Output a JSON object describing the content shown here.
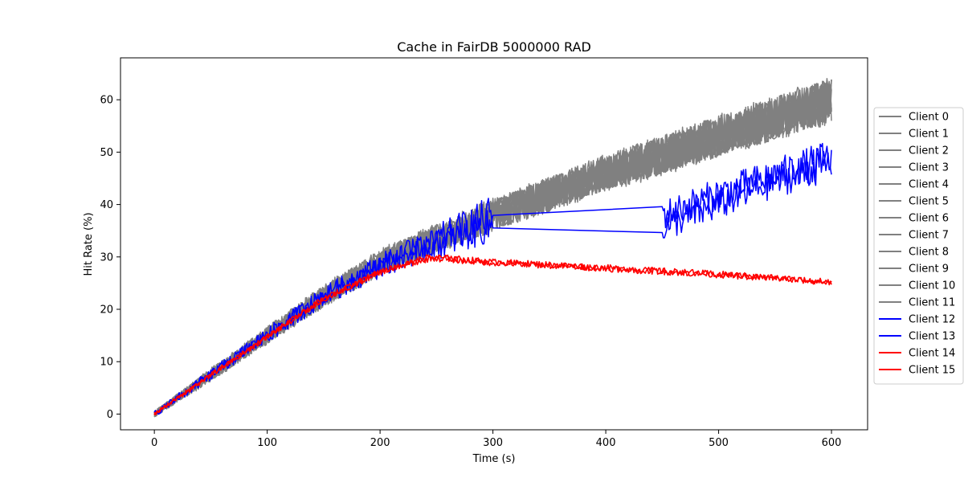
{
  "chart_data": {
    "type": "line",
    "title": "Cache in  FairDB 5000000 RAD",
    "xlabel": "Time (s)",
    "ylabel": "Hit Rate (%)",
    "xlim": [
      -30,
      632
    ],
    "ylim": [
      -3.0,
      68.0
    ],
    "xticks": [
      0,
      100,
      200,
      300,
      400,
      500,
      600
    ],
    "yticks": [
      0,
      10,
      20,
      30,
      40,
      50,
      60
    ],
    "grid": false,
    "legend_position": "outside-right",
    "colors": {
      "gray": "#808080",
      "blue": "#0000ff",
      "red": "#ff0000"
    },
    "series": [
      {
        "name": "Client 0",
        "color": "#808080",
        "x": [
          0,
          50,
          100,
          150,
          200,
          250,
          300,
          350,
          400,
          450,
          500,
          550,
          600
        ],
        "y": [
          0,
          7.5,
          15,
          22.5,
          29,
          33.5,
          38,
          42,
          46,
          49.5,
          53,
          56.5,
          60
        ]
      },
      {
        "name": "Client 1",
        "color": "#808080",
        "x": [
          0,
          50,
          100,
          150,
          200,
          250,
          300,
          350,
          400,
          450,
          500,
          550,
          600
        ],
        "y": [
          0,
          7.3,
          14.8,
          22.2,
          28.7,
          33.2,
          37.6,
          41.6,
          45.6,
          49.1,
          52.6,
          56.1,
          59.6
        ]
      },
      {
        "name": "Client 2",
        "color": "#808080",
        "x": [
          0,
          50,
          100,
          150,
          200,
          250,
          300,
          350,
          400,
          450,
          500,
          550,
          600
        ],
        "y": [
          0,
          7.7,
          15.2,
          22.8,
          29.3,
          33.8,
          38.3,
          42.3,
          46.3,
          49.8,
          53.3,
          56.8,
          60.3
        ]
      },
      {
        "name": "Client 3",
        "color": "#808080",
        "x": [
          0,
          50,
          100,
          150,
          200,
          250,
          300,
          350,
          400,
          450,
          500,
          550,
          600
        ],
        "y": [
          0,
          7.4,
          14.9,
          22.4,
          28.9,
          33.4,
          37.8,
          41.8,
          45.8,
          49.3,
          52.8,
          56.3,
          59.8
        ]
      },
      {
        "name": "Client 4",
        "color": "#808080",
        "x": [
          0,
          50,
          100,
          150,
          200,
          250,
          300,
          350,
          400,
          450,
          500,
          550,
          600
        ],
        "y": [
          0,
          7.6,
          15.1,
          22.6,
          29.1,
          33.6,
          38.1,
          42.1,
          46.1,
          49.6,
          53.1,
          56.6,
          60.1
        ]
      },
      {
        "name": "Client 5",
        "color": "#808080",
        "x": [
          0,
          50,
          100,
          150,
          200,
          250,
          300,
          350,
          400,
          450,
          500,
          550,
          600
        ],
        "y": [
          0,
          7.2,
          14.7,
          22.1,
          28.6,
          33.1,
          37.5,
          41.5,
          45.5,
          49,
          52.5,
          56,
          59.5
        ]
      },
      {
        "name": "Client 6",
        "color": "#808080",
        "x": [
          0,
          50,
          100,
          150,
          200,
          250,
          300,
          350,
          400,
          450,
          500,
          550,
          600
        ],
        "y": [
          0,
          7.8,
          15.3,
          22.9,
          29.4,
          33.9,
          38.4,
          42.4,
          46.4,
          49.9,
          53.4,
          56.9,
          60.4
        ]
      },
      {
        "name": "Client 7",
        "color": "#808080",
        "x": [
          0,
          50,
          100,
          150,
          200,
          250,
          300,
          350,
          400,
          450,
          500,
          550,
          600
        ],
        "y": [
          0,
          7.5,
          15,
          22.5,
          29,
          33.5,
          38,
          42,
          46,
          49.5,
          53,
          56.5,
          60
        ]
      },
      {
        "name": "Client 8",
        "color": "#808080",
        "x": [
          0,
          50,
          100,
          150,
          200,
          250,
          300,
          350,
          400,
          450,
          500,
          550,
          600
        ],
        "y": [
          0,
          7.3,
          14.9,
          22.3,
          28.8,
          33.3,
          37.7,
          41.7,
          45.7,
          49.2,
          52.7,
          56.2,
          59.7
        ]
      },
      {
        "name": "Client 9",
        "color": "#808080",
        "x": [
          0,
          50,
          100,
          150,
          200,
          250,
          300,
          350,
          400,
          450,
          500,
          550,
          600
        ],
        "y": [
          0,
          7.6,
          15.1,
          22.7,
          29.2,
          33.7,
          38.2,
          42.2,
          46.2,
          49.7,
          53.2,
          56.7,
          60.2
        ]
      },
      {
        "name": "Client 10",
        "color": "#808080",
        "x": [
          0,
          50,
          100,
          150,
          200,
          250,
          300,
          350,
          400,
          450,
          500,
          550,
          600
        ],
        "y": [
          0,
          7.4,
          15,
          22.4,
          29,
          33.4,
          37.9,
          41.9,
          45.9,
          49.4,
          52.9,
          56.4,
          59.9
        ]
      },
      {
        "name": "Client 11",
        "color": "#808080",
        "x": [
          0,
          50,
          100,
          150,
          200,
          250,
          300,
          350,
          400,
          450,
          500,
          550,
          600
        ],
        "y": [
          0,
          7.5,
          15.1,
          22.6,
          29.1,
          33.6,
          38.1,
          42.1,
          46.1,
          49.6,
          53.1,
          56.6,
          60.1
        ]
      },
      {
        "name": "Client 12",
        "color": "#0000ff",
        "x": [
          0,
          50,
          100,
          150,
          200,
          250,
          300,
          450,
          500,
          550,
          600
        ],
        "y": [
          0,
          7.5,
          15,
          22.5,
          28.5,
          33,
          38.5,
          38,
          42,
          45.5,
          49
        ]
      },
      {
        "name": "Client 13",
        "color": "#0000ff",
        "x": [
          0,
          50,
          100,
          150,
          200,
          250,
          300,
          450,
          500,
          550,
          600
        ],
        "y": [
          0,
          7.5,
          15,
          22.5,
          28.3,
          32.5,
          36,
          35.5,
          40,
          44.5,
          48
        ]
      },
      {
        "name": "Client 14",
        "color": "#ff0000",
        "x": [
          0,
          50,
          100,
          150,
          200,
          245,
          300,
          350,
          400,
          450,
          500,
          550,
          600
        ],
        "y": [
          0,
          7.5,
          14.8,
          22,
          27.2,
          30,
          29,
          28.5,
          27.9,
          27.3,
          26.7,
          26,
          25.2
        ]
      },
      {
        "name": "Client 15",
        "color": "#ff0000",
        "x": [
          0,
          50,
          100,
          150,
          200,
          245,
          300,
          350,
          400,
          450,
          500,
          550,
          600
        ],
        "y": [
          0,
          7.4,
          14.7,
          21.9,
          27.1,
          29.8,
          28.9,
          28.4,
          27.8,
          27.2,
          26.6,
          25.9,
          25.1
        ]
      }
    ]
  }
}
